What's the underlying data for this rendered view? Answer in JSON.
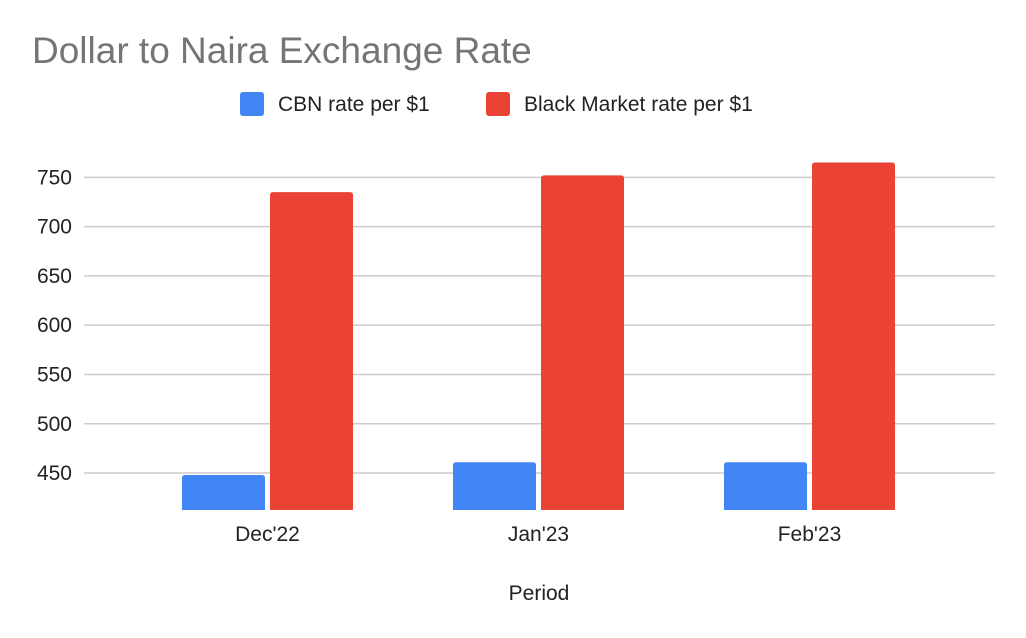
{
  "chart_data": {
    "type": "bar",
    "title": "Dollar to Naira Exchange Rate",
    "xlabel": "Period",
    "ylabel": "",
    "categories": [
      "Dec'22",
      "Jan'23",
      "Feb'23"
    ],
    "series": [
      {
        "name": "CBN rate per $1",
        "color": "#4285f4",
        "values": [
          448,
          461,
          461
        ]
      },
      {
        "name": "Black Market rate per $1",
        "color": "#ea4335",
        "values": [
          735,
          752,
          765
        ]
      }
    ],
    "yticks": [
      450,
      500,
      550,
      600,
      650,
      700,
      750
    ],
    "ylim": [
      412.5,
      762.5
    ],
    "grid": true,
    "legend_position": "top"
  }
}
